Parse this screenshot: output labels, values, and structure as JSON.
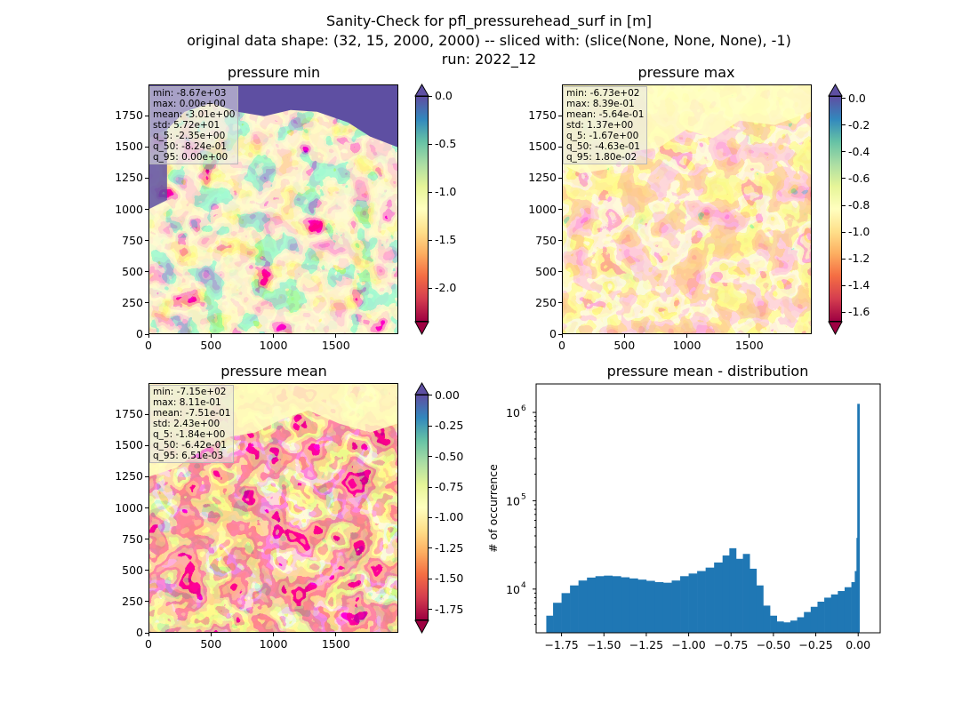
{
  "figure": {
    "title_lines": [
      "Sanity-Check for pfl_pressurehead_surf in [m]",
      "original data shape: (32, 15, 2000, 2000) -- sliced with: (slice(None, None, None), -1)",
      "run: 2022_12"
    ]
  },
  "panels": {
    "min": {
      "title": "pressure min",
      "stats": [
        "min: -8.67e+03",
        "max: 0.00e+00",
        "mean: -3.01e+00",
        "std: 5.72e+01",
        "q_5: -2.35e+00",
        "q_50: -8.24e-01",
        "q_95: 0.00e+00"
      ],
      "xticks": [
        "0",
        "500",
        "1000",
        "1500"
      ],
      "yticks": [
        "0",
        "250",
        "500",
        "750",
        "1000",
        "1250",
        "1500",
        "1750"
      ],
      "colorbar": {
        "ticks": [
          "0.0",
          "-0.5",
          "-1.0",
          "-1.5",
          "-2.0"
        ],
        "vmin": -2.35,
        "vmax": 0.0
      }
    },
    "max": {
      "title": "pressure max",
      "stats": [
        "min: -6.73e+02",
        "max: 8.39e-01",
        "mean: -5.64e-01",
        "std: 1.37e+00",
        "q_5: -1.67e+00",
        "q_50: -4.63e-01",
        "q_95: 1.80e-02"
      ],
      "xticks": [
        "0",
        "500",
        "1000",
        "1500"
      ],
      "yticks": [
        "0",
        "250",
        "500",
        "750",
        "1000",
        "1250",
        "1500",
        "1750"
      ],
      "colorbar": {
        "ticks": [
          "0.0",
          "-0.2",
          "-0.4",
          "-0.6",
          "-0.8",
          "-1.0",
          "-1.2",
          "-1.4",
          "-1.6"
        ],
        "vmin": -1.67,
        "vmax": 0.018
      }
    },
    "mean": {
      "title": "pressure mean",
      "stats": [
        "min: -7.15e+02",
        "max: 8.11e-01",
        "mean: -7.51e-01",
        "std: 2.43e+00",
        "q_5: -1.84e+00",
        "q_50: -6.42e-01",
        "q_95: 6.51e-03"
      ],
      "xticks": [
        "0",
        "500",
        "1000",
        "1500"
      ],
      "yticks": [
        "0",
        "250",
        "500",
        "750",
        "1000",
        "1250",
        "1500",
        "1750"
      ],
      "colorbar": {
        "ticks": [
          "0.00",
          "-0.25",
          "-0.50",
          "-0.75",
          "-1.00",
          "-1.25",
          "-1.50",
          "-1.75"
        ],
        "vmin": -1.84,
        "vmax": 0.0065
      }
    }
  },
  "colors": {
    "spectral": [
      "#9e0142",
      "#d53e4f",
      "#f46d43",
      "#fdae61",
      "#fee08b",
      "#ffffbf",
      "#e6f598",
      "#abdda4",
      "#66c2a5",
      "#3288bd",
      "#5e4fa2"
    ],
    "hist_bar": "#1f77b4"
  },
  "chart_data": [
    {
      "type": "heatmap",
      "title": "pressure min",
      "xlim": [
        0,
        2000
      ],
      "ylim": [
        0,
        2000
      ],
      "color_range": [
        -2.35,
        0.0
      ],
      "colormap": "Spectral"
    },
    {
      "type": "heatmap",
      "title": "pressure max",
      "xlim": [
        0,
        2000
      ],
      "ylim": [
        0,
        2000
      ],
      "color_range": [
        -1.67,
        0.018
      ],
      "colormap": "Spectral"
    },
    {
      "type": "heatmap",
      "title": "pressure mean",
      "xlim": [
        0,
        2000
      ],
      "ylim": [
        0,
        2000
      ],
      "color_range": [
        -1.84,
        0.0065
      ],
      "colormap": "Spectral"
    },
    {
      "type": "bar",
      "title": "pressure mean - distribution",
      "ylabel": "# of occurrence",
      "yscale": "log",
      "xlim": [
        -1.9,
        0.13
      ],
      "ylim": [
        3200,
        2100000
      ],
      "xticks": [
        "−1.75",
        "−1.50",
        "−1.25",
        "−1.00",
        "−0.75",
        "−0.50",
        "−0.25",
        "0.00"
      ],
      "yticks": [
        "10",
        "10",
        "10"
      ],
      "ytick_exponents": [
        "4",
        "5",
        "6"
      ],
      "bins": [
        [
          -1.84,
          5000
        ],
        [
          -1.8,
          7000
        ],
        [
          -1.75,
          9000
        ],
        [
          -1.7,
          11000
        ],
        [
          -1.65,
          12500
        ],
        [
          -1.6,
          13500
        ],
        [
          -1.55,
          14000
        ],
        [
          -1.5,
          14200
        ],
        [
          -1.45,
          14000
        ],
        [
          -1.4,
          13600
        ],
        [
          -1.35,
          13200
        ],
        [
          -1.3,
          12800
        ],
        [
          -1.25,
          12400
        ],
        [
          -1.2,
          12000
        ],
        [
          -1.15,
          11800
        ],
        [
          -1.1,
          12500
        ],
        [
          -1.05,
          14000
        ],
        [
          -1.0,
          15000
        ],
        [
          -0.95,
          16000
        ],
        [
          -0.9,
          17500
        ],
        [
          -0.85,
          20000
        ],
        [
          -0.8,
          24000
        ],
        [
          -0.76,
          29000
        ],
        [
          -0.72,
          22000
        ],
        [
          -0.68,
          25000
        ],
        [
          -0.64,
          17000
        ],
        [
          -0.6,
          11000
        ],
        [
          -0.56,
          6500
        ],
        [
          -0.52,
          5000
        ],
        [
          -0.48,
          4300
        ],
        [
          -0.44,
          4200
        ],
        [
          -0.4,
          4400
        ],
        [
          -0.36,
          4800
        ],
        [
          -0.32,
          5500
        ],
        [
          -0.28,
          6300
        ],
        [
          -0.24,
          7200
        ],
        [
          -0.2,
          8000
        ],
        [
          -0.16,
          8700
        ],
        [
          -0.12,
          9500
        ],
        [
          -0.08,
          10500
        ],
        [
          -0.04,
          12000
        ],
        [
          -0.02,
          16000
        ],
        [
          -0.01,
          38000
        ],
        [
          0.0,
          1250000
        ]
      ]
    }
  ]
}
